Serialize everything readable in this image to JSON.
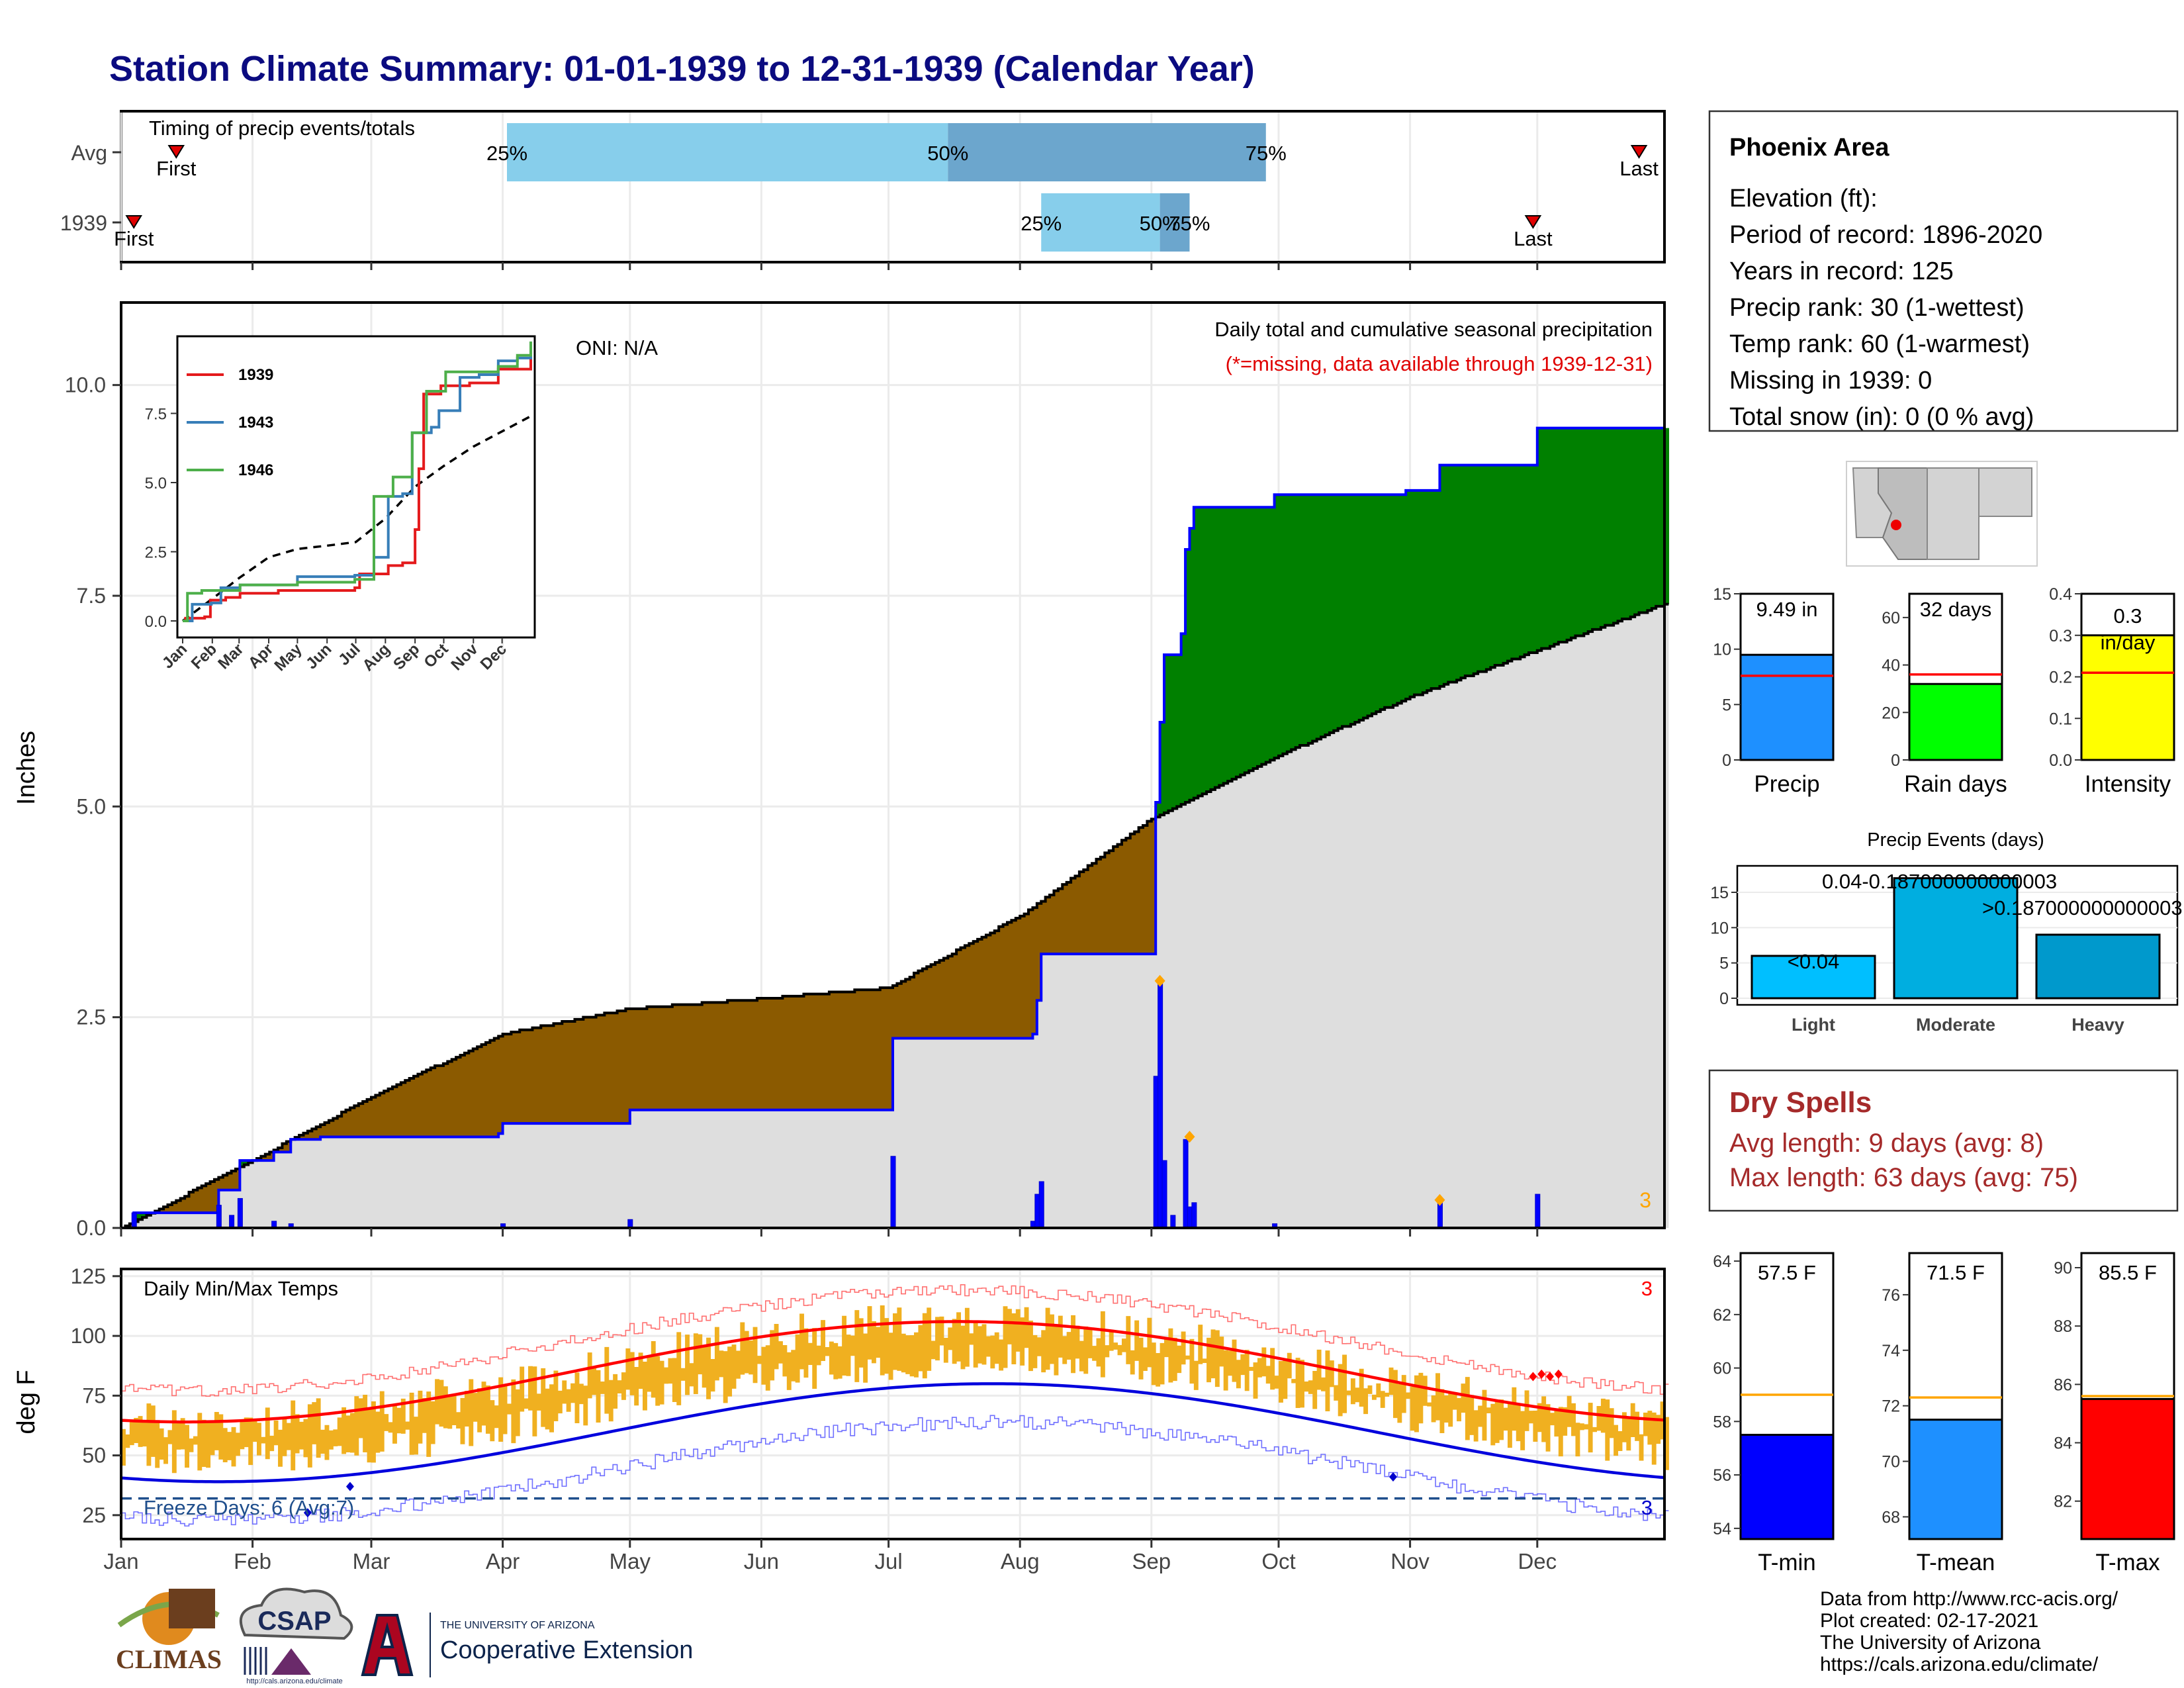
{
  "title": "Station Climate Summary: 01-01-1939 to 12-31-1939 (Calendar Year)",
  "timing": {
    "label": "Timing of precip events/totals",
    "rows": [
      "Avg",
      "1939"
    ],
    "avg": {
      "first": "01-14",
      "q25": "04-02",
      "q50": "07-15",
      "q75": "09-28",
      "last": "12-25"
    },
    "year": {
      "first": "01-04",
      "q25": "08-06",
      "q50": "09-03",
      "q75": "09-10",
      "last": "11-30"
    },
    "first_label": "First",
    "last_label": "Last",
    "pct_labels": [
      "25%",
      "50%",
      "75%"
    ]
  },
  "months": [
    "Jan",
    "Feb",
    "Mar",
    "Apr",
    "May",
    "Jun",
    "Jul",
    "Aug",
    "Sep",
    "Oct",
    "Nov",
    "Dec"
  ],
  "main": {
    "ylabel": "Inches",
    "yticks": [
      "0.0",
      "2.5",
      "5.0",
      "7.5",
      "10.0"
    ],
    "oni": "ONI: N/A",
    "caption": "Daily total and cumulative seasonal precipitation",
    "missing_note": "(*=missing, data available through 1939-12-31)",
    "corner_count": "3"
  },
  "inset": {
    "series": [
      "1939",
      "1943",
      "1946"
    ],
    "colors": [
      "#e41a1c",
      "#377eb8",
      "#4daf4a"
    ],
    "yticks": [
      "0.0",
      "2.5",
      "5.0",
      "7.5"
    ]
  },
  "temps": {
    "title": "Daily Min/Max Temps",
    "ylabel": "deg F",
    "yticks": [
      "25",
      "50",
      "75",
      "100",
      "125"
    ],
    "freeze": "Freeze Days: 6 (Avg:7)",
    "count_top": "3",
    "count_bottom": "3"
  },
  "station": {
    "name": "Phoenix Area",
    "lines": [
      "Elevation (ft):",
      "Period of record: 1896-2020",
      "Years in record: 125",
      "Precip rank: 30 (1-wettest)",
      "Temp rank: 60 (1-warmest)",
      "Missing in 1939: 0",
      "Total snow (in): 0 (0 % avg)"
    ]
  },
  "mini_bars": [
    {
      "label": "Precip",
      "value_label": "9.49 in",
      "value": 9.49,
      "avg": 7.6,
      "ymax": 15,
      "ticks": [
        "0",
        "5",
        "10",
        "15"
      ],
      "color": "#1e90ff"
    },
    {
      "label": "Rain days",
      "value_label": "32 days",
      "value": 32,
      "avg": 36,
      "ymax": 70,
      "ticks": [
        "0",
        "20",
        "40",
        "60"
      ],
      "color": "#00ff00"
    },
    {
      "label": "Intensity",
      "value_label": "0.3 in/day",
      "value": 0.3,
      "avg": 0.21,
      "ymax": 0.4,
      "ticks": [
        "0.0",
        "0.1",
        "0.2",
        "0.3",
        "0.4"
      ],
      "color": "#ffff00"
    }
  ],
  "events": {
    "title": "Precip Events (days)",
    "categories": [
      "Light",
      "Moderate",
      "Heavy"
    ],
    "values": [
      6,
      17,
      9
    ],
    "labels": [
      "<0.04",
      "0.04-0.187000000000003",
      ">0.187000000000003"
    ],
    "yticks": [
      "0",
      "5",
      "10",
      "15"
    ],
    "colors": [
      "#00bfff",
      "#00aee0",
      "#0099cc"
    ]
  },
  "dry": {
    "title": "Dry Spells",
    "avg_line": "Avg length: 9 days (avg: 8)",
    "max_line": "Max length: 63 days (avg: 75)"
  },
  "temp_bars": [
    {
      "label": "T-min",
      "value_label": "57.5 F",
      "value": 57.5,
      "avg": 59.0,
      "ymin": 53.6,
      "ymax": 64.3,
      "ticks": [
        "54",
        "56",
        "58",
        "60",
        "62",
        "64"
      ],
      "color": "#0000ff"
    },
    {
      "label": "T-mean",
      "value_label": "71.5 F",
      "value": 71.5,
      "avg": 72.3,
      "ymin": 67.2,
      "ymax": 77.5,
      "ticks": [
        "68",
        "70",
        "72",
        "74",
        "76"
      ],
      "color": "#1e90ff"
    },
    {
      "label": "T-max",
      "value_label": "85.5 F",
      "value": 85.5,
      "avg": 85.6,
      "ymin": 80.7,
      "ymax": 90.5,
      "ticks": [
        "82",
        "84",
        "86",
        "88",
        "90"
      ],
      "color": "#ff0000"
    }
  ],
  "footer": [
    "Data from http://www.rcc-acis.org/",
    "Plot created: 02-17-2021",
    "The University of Arizona",
    "https://cals.arizona.edu/climate/"
  ],
  "logos": {
    "climas": "CLIMAS",
    "csap": "CSAP",
    "csap_url": "http://cals.arizona.edu/climate",
    "ua_small": "THE UNIVERSITY OF ARIZONA",
    "ua_big": "Cooperative Extension"
  },
  "chart_data": {
    "type": "area",
    "title": "Daily total and cumulative seasonal precipitation",
    "ylabel": "Inches",
    "ylim": [
      0,
      10
    ],
    "cumulative_1939": [
      [
        "1939-01-01",
        0.0
      ],
      [
        "1939-01-04",
        0.18
      ],
      [
        "1939-01-23",
        0.18
      ],
      [
        "1939-01-24",
        0.45
      ],
      [
        "1939-01-29",
        0.8
      ],
      [
        "1939-02-06",
        0.9
      ],
      [
        "1939-02-10",
        1.05
      ],
      [
        "1939-02-17",
        1.08
      ],
      [
        "1939-03-31",
        1.12
      ],
      [
        "1939-04-01",
        1.24
      ],
      [
        "1939-04-30",
        1.24
      ],
      [
        "1939-05-01",
        1.4
      ],
      [
        "1939-07-01",
        1.4
      ],
      [
        "1939-07-02",
        2.25
      ],
      [
        "1939-08-04",
        2.3
      ],
      [
        "1939-08-05",
        2.7
      ],
      [
        "1939-08-06",
        3.25
      ],
      [
        "1939-09-01",
        3.25
      ],
      [
        "1939-09-02",
        5.05
      ],
      [
        "1939-09-03",
        6.0
      ],
      [
        "1939-09-04",
        6.8
      ],
      [
        "1939-09-08",
        7.05
      ],
      [
        "1939-09-09",
        8.05
      ],
      [
        "1939-09-10",
        8.3
      ],
      [
        "1939-09-11",
        8.55
      ],
      [
        "1939-09-30",
        8.7
      ],
      [
        "1939-10-31",
        8.75
      ],
      [
        "1939-11-08",
        9.05
      ],
      [
        "1939-11-30",
        9.05
      ],
      [
        "1939-12-01",
        9.49
      ],
      [
        "1939-12-31",
        9.49
      ]
    ],
    "normal_cumulative": [
      [
        "01-01",
        0.0
      ],
      [
        "02-01",
        0.8
      ],
      [
        "03-01",
        1.55
      ],
      [
        "04-01",
        2.3
      ],
      [
        "05-01",
        2.6
      ],
      [
        "06-01",
        2.72
      ],
      [
        "07-01",
        2.85
      ],
      [
        "08-01",
        3.7
      ],
      [
        "09-01",
        4.85
      ],
      [
        "10-01",
        5.6
      ],
      [
        "11-01",
        6.3
      ],
      [
        "12-01",
        6.85
      ],
      [
        "12-31",
        7.4
      ]
    ],
    "daily_bars": [
      [
        "01-04",
        0.18
      ],
      [
        "01-24",
        0.27
      ],
      [
        "01-27",
        0.15
      ],
      [
        "01-29",
        0.35
      ],
      [
        "02-06",
        0.08
      ],
      [
        "02-10",
        0.05
      ],
      [
        "04-01",
        0.05
      ],
      [
        "05-01",
        0.1
      ],
      [
        "07-02",
        0.85
      ],
      [
        "08-04",
        0.08
      ],
      [
        "08-05",
        0.4
      ],
      [
        "08-06",
        0.55
      ],
      [
        "09-02",
        1.8
      ],
      [
        "09-03",
        2.9
      ],
      [
        "09-04",
        0.8
      ],
      [
        "09-06",
        0.15
      ],
      [
        "09-09",
        1.05
      ],
      [
        "09-10",
        0.25
      ],
      [
        "09-11",
        0.3
      ],
      [
        "09-30",
        0.05
      ],
      [
        "11-08",
        0.3
      ],
      [
        "12-01",
        0.4
      ]
    ],
    "series": [
      {
        "name": "1939",
        "inset": true
      },
      {
        "name": "1943",
        "inset": true
      },
      {
        "name": "1946",
        "inset": true
      }
    ],
    "temperature": {
      "ylim": [
        15,
        128
      ],
      "normal_max_range": [
        64,
        106
      ],
      "normal_min_range": [
        39,
        80
      ],
      "freeze_line": 32
    }
  }
}
